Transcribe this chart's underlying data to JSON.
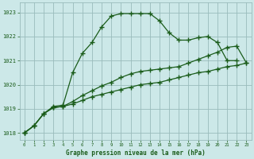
{
  "title": "Graphe pression niveau de la mer (hPa)",
  "bg_color": "#cce8e8",
  "grid_color": "#99bbbb",
  "line_color": "#1a5c1a",
  "xlim": [
    -0.5,
    23.5
  ],
  "ylim": [
    1017.7,
    1023.4
  ],
  "yticks": [
    1018,
    1019,
    1020,
    1021,
    1022,
    1023
  ],
  "xticks": [
    0,
    1,
    2,
    3,
    4,
    5,
    6,
    7,
    8,
    9,
    10,
    11,
    12,
    13,
    14,
    15,
    16,
    17,
    18,
    19,
    20,
    21,
    22,
    23
  ],
  "series": [
    [
      1018.0,
      1018.3,
      1018.8,
      1019.1,
      1019.15,
      1020.5,
      1021.3,
      1021.75,
      1022.4,
      1022.85,
      1022.95,
      1022.95,
      1022.95,
      1022.95,
      1022.65,
      1022.15,
      1021.85,
      1021.85,
      1021.95,
      1022.0,
      1021.75,
      1021.0,
      1021.0,
      null
    ],
    [
      1018.0,
      1018.3,
      1018.8,
      1019.05,
      1019.1,
      1019.3,
      1019.55,
      1019.75,
      1019.95,
      1020.1,
      1020.3,
      1020.45,
      1020.55,
      1020.6,
      1020.65,
      1020.7,
      1020.75,
      1020.9,
      1021.05,
      1021.2,
      1021.35,
      1021.55,
      1021.6,
      1020.9
    ],
    [
      1018.0,
      1018.3,
      1018.8,
      1019.05,
      1019.1,
      1019.2,
      1019.35,
      1019.5,
      1019.6,
      1019.7,
      1019.8,
      1019.9,
      1020.0,
      1020.05,
      1020.1,
      1020.2,
      1020.3,
      1020.4,
      1020.5,
      1020.55,
      1020.65,
      1020.75,
      1020.8,
      1020.9
    ]
  ]
}
